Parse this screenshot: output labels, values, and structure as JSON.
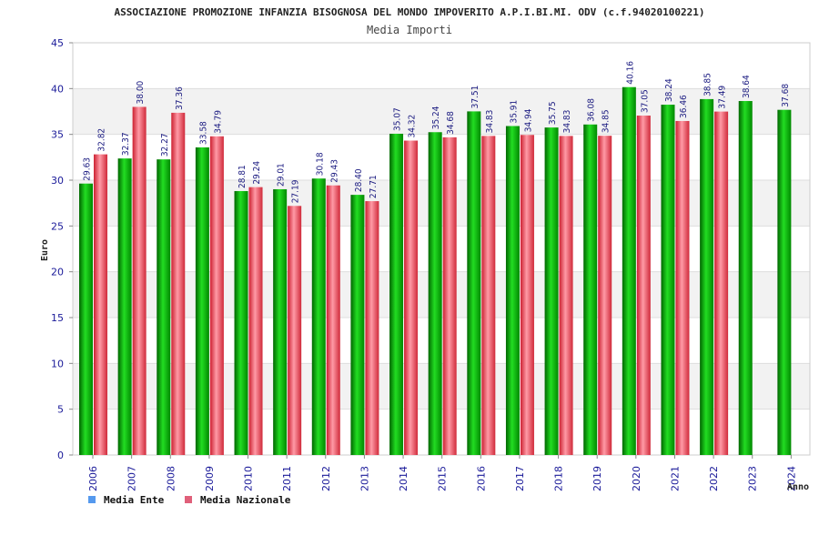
{
  "chart_data": {
    "type": "bar",
    "title": "ASSOCIAZIONE PROMOZIONE INFANZIA BISOGNOSA DEL MONDO IMPOVERITO A.P.I.BI.MI. ODV (c.f.94020100221)",
    "subtitle": "Media Importi",
    "xlabel": "Anno",
    "ylabel": "Euro",
    "ylim": [
      0,
      45
    ],
    "yticks": [
      "0",
      "5",
      "10",
      "15",
      "20",
      "25",
      "30",
      "35",
      "40",
      "45"
    ],
    "grid": true,
    "legend_position": "bottom-left",
    "categories": [
      "2006",
      "2007",
      "2008",
      "2009",
      "2010",
      "2011",
      "2012",
      "2013",
      "2014",
      "2015",
      "2016",
      "2017",
      "2018",
      "2019",
      "2020",
      "2021",
      "2022",
      "2023",
      "2024"
    ],
    "series": [
      {
        "name": "Media Ente",
        "color": "#00aa00",
        "legend_color": "#5599ee",
        "values": [
          29.63,
          32.37,
          32.27,
          33.58,
          28.81,
          29.01,
          30.18,
          28.4,
          35.07,
          35.24,
          37.51,
          35.91,
          35.75,
          36.08,
          40.16,
          38.24,
          38.85,
          38.64,
          37.68
        ],
        "labels": [
          "29.63",
          "32.37",
          "32.27",
          "33.58",
          "28.81",
          "29.01",
          "30.18",
          "28.40",
          "35.07",
          "35.24",
          "37.51",
          "35.91",
          "35.75",
          "36.08",
          "40.16",
          "38.24",
          "38.85",
          "38.64",
          "37.68"
        ]
      },
      {
        "name": "Media Nazionale",
        "color": "#e84050",
        "legend_color": "#e0607a",
        "values": [
          32.82,
          38.0,
          37.36,
          34.79,
          29.24,
          27.19,
          29.43,
          27.71,
          34.32,
          34.68,
          34.83,
          34.94,
          34.83,
          34.85,
          37.05,
          36.46,
          37.49,
          null,
          null
        ],
        "labels": [
          "32.82",
          "38.00",
          "37.36",
          "34.79",
          "29.24",
          "27.19",
          "29.43",
          "27.71",
          "34.32",
          "34.68",
          "34.83",
          "34.94",
          "34.83",
          "34.85",
          "37.05",
          "36.46",
          "37.49",
          "",
          ""
        ]
      }
    ]
  }
}
